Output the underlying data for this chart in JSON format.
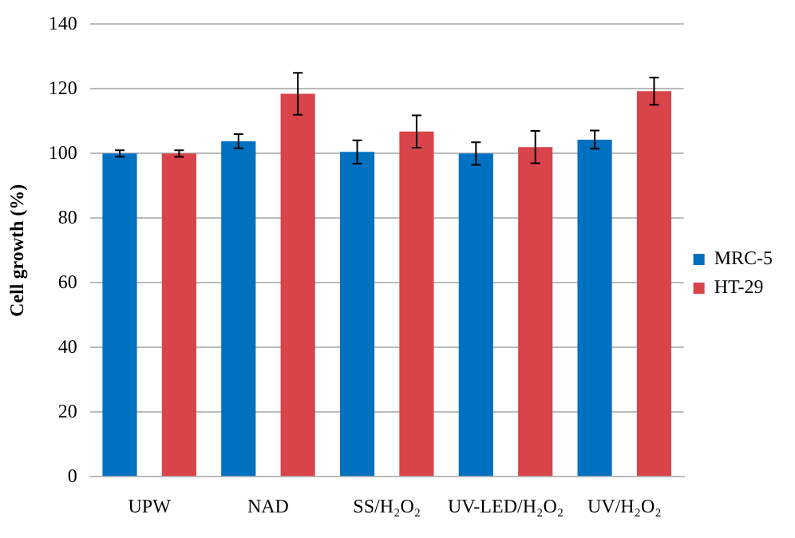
{
  "chart_data": {
    "type": "bar",
    "ylabel": "Cell growth (%)",
    "categories": [
      "UPW",
      "NAD",
      "SS/H₂O₂",
      "UV-LED/H₂O₂",
      "UV/H₂O₂"
    ],
    "series": [
      {
        "name": "MRC-5",
        "color": "#0070c0",
        "values": [
          100,
          103.8,
          100.5,
          100,
          104.3
        ],
        "errors": [
          1,
          2.2,
          3.6,
          3.5,
          2.8
        ]
      },
      {
        "name": "HT-29",
        "color": "#d9434a",
        "values": [
          100,
          118.5,
          106.8,
          102,
          119.3
        ],
        "errors": [
          1,
          6.5,
          5,
          5,
          4.2
        ]
      }
    ],
    "ylim": [
      0,
      140
    ],
    "yticks": [
      0,
      20,
      40,
      60,
      80,
      100,
      120,
      140
    ],
    "grid": "y",
    "legend": "right"
  }
}
